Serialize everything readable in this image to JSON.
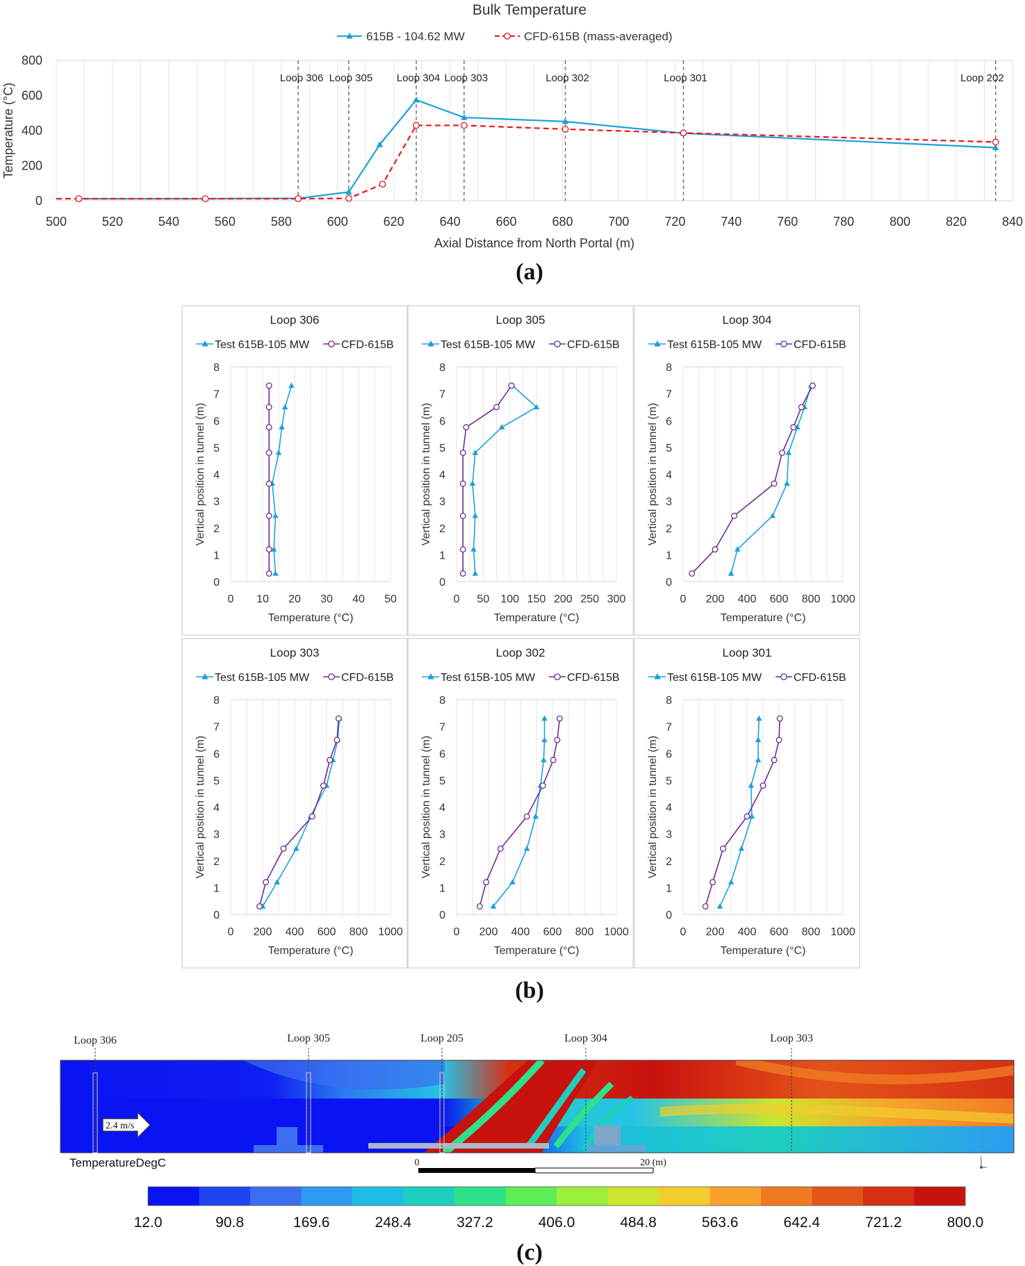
{
  "panel_labels": {
    "a": "(a)",
    "b": "(b)",
    "c": "(c)"
  },
  "colors": {
    "test": "#1BA1D8",
    "cfd_bulk": "#E8151B",
    "cfd_profile": "#6B2C91",
    "grid": "#e3e3e3",
    "loop_line": "#707070"
  },
  "chart_data": [
    {
      "id": "bulk",
      "type": "line",
      "title": "Bulk Temperature",
      "xlabel": "Axial Distance from North Portal (m)",
      "ylabel": "Temperature (°C)",
      "xlim": [
        500,
        840
      ],
      "ylim": [
        0,
        800
      ],
      "xticks": [
        500,
        520,
        540,
        560,
        580,
        600,
        620,
        640,
        660,
        680,
        700,
        720,
        740,
        760,
        780,
        800,
        820,
        840
      ],
      "yticks": [
        0,
        200,
        400,
        600,
        800
      ],
      "grid": "vertical",
      "legend": "top-center",
      "loops": [
        {
          "label": "Loop 306",
          "x": 586
        },
        {
          "label": "Loop 305",
          "x": 604
        },
        {
          "label": "Loop 304",
          "x": 628
        },
        {
          "label": "Loop 303",
          "x": 645
        },
        {
          "label": "Loop 302",
          "x": 681
        },
        {
          "label": "Loop 301",
          "x": 723
        },
        {
          "label": "Loop 202",
          "x": 834
        }
      ],
      "series": [
        {
          "name": "615B - 104.62 MW",
          "style": "test",
          "x": [
            508,
            553,
            586,
            604,
            615,
            628,
            645,
            681,
            723,
            834
          ],
          "y": [
            12,
            12,
            14,
            50,
            320,
            575,
            475,
            452,
            385,
            303
          ]
        },
        {
          "name": "CFD-615B (mass-averaged)",
          "style": "cfd_bulk",
          "x": [
            500,
            508,
            553,
            586,
            604,
            616,
            628,
            645,
            681,
            723,
            834
          ],
          "y": [
            12,
            12,
            12,
            12,
            14,
            95,
            430,
            430,
            408,
            387,
            335
          ]
        }
      ]
    },
    {
      "id": "loop306",
      "type": "line",
      "title": "Loop 306",
      "xlabel": "Temperature (°C)",
      "ylabel": "Vertical position in tunnel (m)",
      "xlim": [
        0,
        50
      ],
      "xticks": [
        0,
        10,
        20,
        30,
        40,
        50
      ],
      "ylim": [
        0,
        8
      ],
      "yticks": [
        0,
        1,
        2,
        3,
        4,
        5,
        6,
        7,
        8
      ],
      "grid": "vertical",
      "legend": "top",
      "series": [
        {
          "name": "Test 615B-105 MW",
          "style": "test",
          "x": [
            14,
            13.5,
            14,
            13,
            15,
            16,
            17,
            19
          ],
          "y": [
            0.3,
            1.2,
            2.45,
            3.65,
            4.8,
            5.75,
            6.5,
            7.3
          ]
        },
        {
          "name": "CFD-615B",
          "style": "cfd_profile",
          "x": [
            12,
            12,
            12,
            12,
            12,
            12,
            12,
            12
          ],
          "y": [
            0.3,
            1.2,
            2.45,
            3.65,
            4.8,
            5.75,
            6.5,
            7.3
          ]
        }
      ]
    },
    {
      "id": "loop305",
      "type": "line",
      "title": "Loop 305",
      "xlabel": "Temperature (°C)",
      "ylabel": "Vertical position in tunnel (m)",
      "xlim": [
        0,
        300
      ],
      "xticks": [
        0,
        50,
        100,
        150,
        200,
        250,
        300
      ],
      "ylim": [
        0,
        8
      ],
      "yticks": [
        0,
        1,
        2,
        3,
        4,
        5,
        6,
        7,
        8
      ],
      "grid": "vertical",
      "legend": "top",
      "series": [
        {
          "name": "Test 615B-105 MW",
          "style": "test",
          "x": [
            35,
            32,
            35,
            30,
            35,
            85,
            150,
            105
          ],
          "y": [
            0.3,
            1.2,
            2.45,
            3.65,
            4.8,
            5.75,
            6.5,
            7.3
          ]
        },
        {
          "name": "CFD-615B",
          "style": "cfd_profile",
          "x": [
            12,
            12,
            12,
            12,
            12,
            18,
            75,
            103
          ],
          "y": [
            0.3,
            1.2,
            2.45,
            3.65,
            4.8,
            5.75,
            6.5,
            7.3
          ]
        }
      ]
    },
    {
      "id": "loop304",
      "type": "line",
      "title": "Loop 304",
      "xlabel": "Temperature (°C)",
      "ylabel": "Vertical position in tunnel (m)",
      "xlim": [
        0,
        1000
      ],
      "xticks": [
        0,
        200,
        400,
        600,
        800,
        1000
      ],
      "ylim": [
        0,
        8
      ],
      "yticks": [
        0,
        1,
        2,
        3,
        4,
        5,
        6,
        7,
        8
      ],
      "grid": "vertical",
      "legend": "top",
      "series": [
        {
          "name": "Test 615B-105 MW",
          "style": "test",
          "x": [
            300,
            340,
            560,
            650,
            660,
            715,
            760,
            800
          ],
          "y": [
            0.3,
            1.2,
            2.45,
            3.65,
            4.8,
            5.75,
            6.5,
            7.3
          ]
        },
        {
          "name": "CFD-615B",
          "style": "cfd_profile",
          "x": [
            55,
            200,
            320,
            570,
            620,
            690,
            740,
            810
          ],
          "y": [
            0.3,
            1.2,
            2.45,
            3.65,
            4.8,
            5.75,
            6.5,
            7.3
          ]
        }
      ]
    },
    {
      "id": "loop303",
      "type": "line",
      "title": "Loop 303",
      "xlabel": "Temperature (°C)",
      "ylabel": "Vertical position in tunnel (m)",
      "xlim": [
        0,
        1000
      ],
      "xticks": [
        0,
        200,
        400,
        600,
        800,
        1000
      ],
      "ylim": [
        0,
        8
      ],
      "yticks": [
        0,
        1,
        2,
        3,
        4,
        5,
        6,
        7,
        8
      ],
      "grid": "vertical",
      "legend": "top",
      "series": [
        {
          "name": "Test 615B-105 MW",
          "style": "test",
          "x": [
            200,
            290,
            410,
            500,
            600,
            640,
            670,
            680
          ],
          "y": [
            0.3,
            1.2,
            2.45,
            3.65,
            4.8,
            5.75,
            6.5,
            7.3
          ]
        },
        {
          "name": "CFD-615B",
          "style": "cfd_profile",
          "x": [
            180,
            220,
            330,
            510,
            580,
            620,
            665,
            675
          ],
          "y": [
            0.3,
            1.2,
            2.45,
            3.65,
            4.8,
            5.75,
            6.5,
            7.3
          ]
        }
      ]
    },
    {
      "id": "loop302",
      "type": "line",
      "title": "Loop 302",
      "xlabel": "Temperature (°C)",
      "ylabel": "Vertical position in tunnel (m)",
      "xlim": [
        0,
        1000
      ],
      "xticks": [
        0,
        200,
        400,
        600,
        800,
        1000
      ],
      "ylim": [
        0,
        8
      ],
      "yticks": [
        0,
        1,
        2,
        3,
        4,
        5,
        6,
        7,
        8
      ],
      "grid": "vertical",
      "legend": "top",
      "series": [
        {
          "name": "Test 615B-105 MW",
          "style": "test",
          "x": [
            230,
            350,
            440,
            495,
            525,
            545,
            550,
            550
          ],
          "y": [
            0.3,
            1.2,
            2.45,
            3.65,
            4.8,
            5.75,
            6.5,
            7.3
          ]
        },
        {
          "name": "CFD-615B",
          "style": "cfd_profile",
          "x": [
            145,
            185,
            275,
            440,
            540,
            605,
            630,
            645
          ],
          "y": [
            0.3,
            1.2,
            2.45,
            3.65,
            4.8,
            5.75,
            6.5,
            7.3
          ]
        }
      ]
    },
    {
      "id": "loop301",
      "type": "line",
      "title": "Loop 301",
      "xlabel": "Temperature (°C)",
      "ylabel": "Vertical position in tunnel (m)",
      "xlim": [
        0,
        1000
      ],
      "xticks": [
        0,
        200,
        400,
        600,
        800,
        1000
      ],
      "ylim": [
        0,
        8
      ],
      "yticks": [
        0,
        1,
        2,
        3,
        4,
        5,
        6,
        7,
        8
      ],
      "grid": "vertical",
      "legend": "top",
      "series": [
        {
          "name": "Test 615B-105 MW",
          "style": "test",
          "x": [
            230,
            300,
            365,
            430,
            425,
            470,
            470,
            475
          ],
          "y": [
            0.3,
            1.2,
            2.45,
            3.65,
            4.8,
            5.75,
            6.5,
            7.3
          ]
        },
        {
          "name": "CFD-615B",
          "style": "cfd_profile",
          "x": [
            140,
            185,
            250,
            400,
            500,
            570,
            600,
            605
          ],
          "y": [
            0.3,
            1.2,
            2.45,
            3.65,
            4.8,
            5.75,
            6.5,
            7.3
          ]
        }
      ]
    },
    {
      "id": "contour",
      "type": "heatmap",
      "field_label": "TemperatureDegC",
      "velocity_label": "2.4 m/s",
      "loops": [
        "Loop 306",
        "Loop 305",
        "Loop 205",
        "Loop 304",
        "Loop 303"
      ],
      "scalebar": {
        "start": "0",
        "end": "20 (m)"
      },
      "colorbar": {
        "min": 12.0,
        "max": 800.0,
        "tick_labels": [
          "12.0",
          "90.8",
          "169.6",
          "248.4",
          "327.2",
          "406.0",
          "484.8",
          "563.6",
          "642.4",
          "721.2",
          "800.0"
        ],
        "colors": [
          "#0a14f2",
          "#1f45f0",
          "#3c6ef0",
          "#2c9cf2",
          "#1ebce4",
          "#1fcfbe",
          "#2fe08a",
          "#5fec56",
          "#9df03a",
          "#cde52e",
          "#f2cd2e",
          "#f7a02c",
          "#f07a22",
          "#e4541a",
          "#d63014",
          "#c8120e"
        ]
      }
    }
  ]
}
